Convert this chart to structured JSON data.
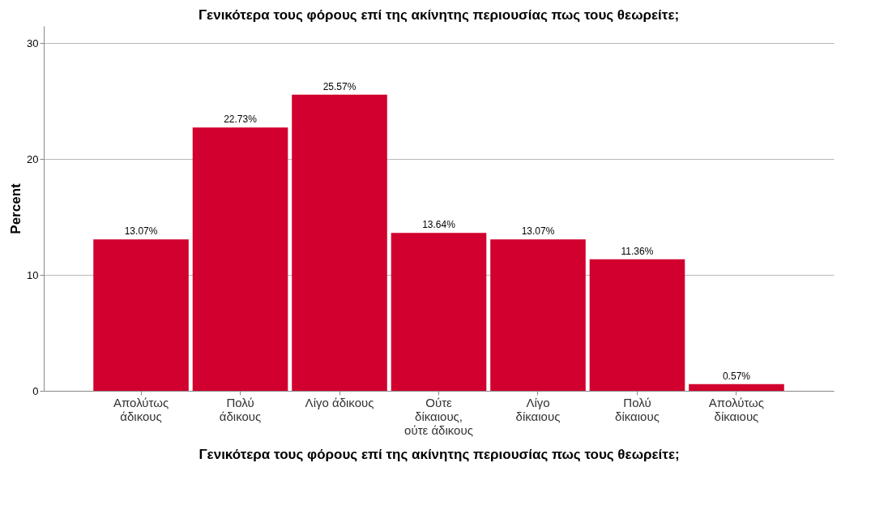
{
  "chart_data": {
    "type": "bar",
    "title": "Γενικότερα τους φόρους επί της ακίνητης περιουσίας πως τους θεωρείτε;",
    "xlabel": "Γενικότερα τους φόρους επί της ακίνητης περιουσίας πως τους θεωρείτε;",
    "ylabel": "Percent",
    "categories": [
      "Απολύτως\nάδικους",
      "Πολύ\nάδικους",
      "Λίγο άδικους",
      "Ούτε\nδίκαιους,\nούτε άδικους",
      "Λίγο\nδίκαιους",
      "Πολύ\nδίκαιους",
      "Απολύτως\nδίκαιους"
    ],
    "values": [
      13.07,
      22.73,
      25.57,
      13.64,
      13.07,
      11.36,
      0.57
    ],
    "value_labels": [
      "13.07%",
      "22.73%",
      "25.57%",
      "13.64%",
      "13.07%",
      "11.36%",
      "0.57%"
    ],
    "color": "#d1002e",
    "ylim": [
      0,
      31.5
    ],
    "yticks": [
      0,
      10,
      20,
      30
    ],
    "grid": "y"
  }
}
